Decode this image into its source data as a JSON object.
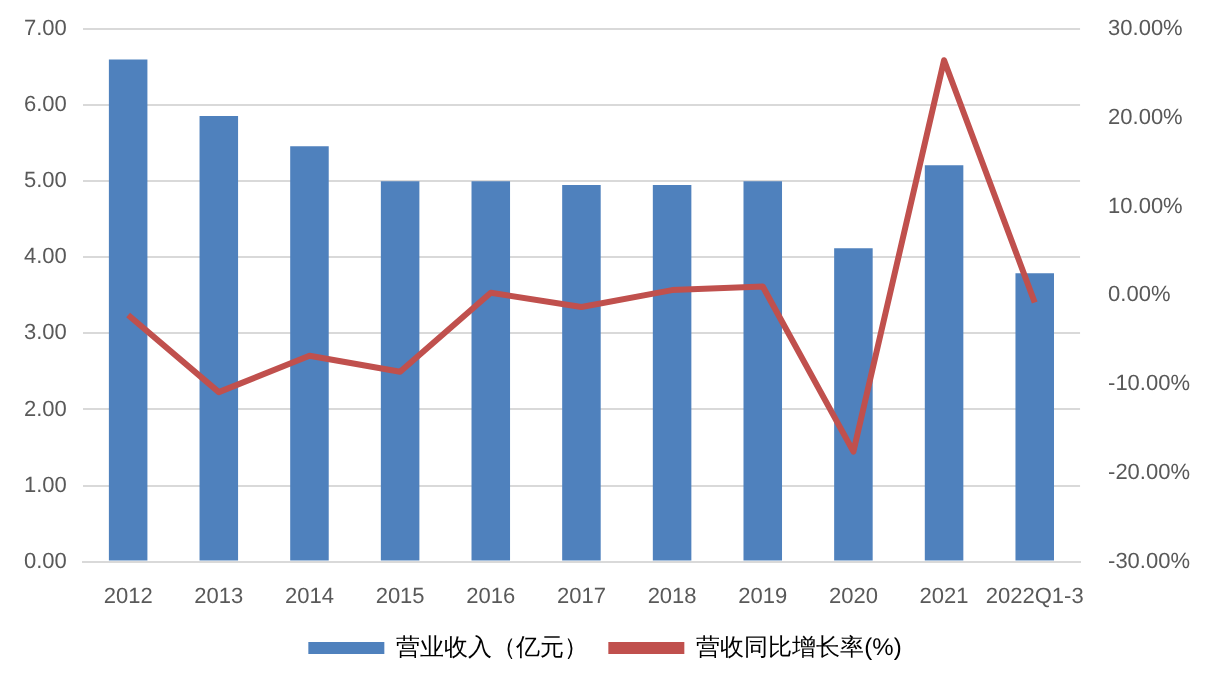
{
  "chart_data": {
    "type": "bar",
    "categories": [
      "2012",
      "2013",
      "2014",
      "2015",
      "2016",
      "2017",
      "2018",
      "2019",
      "2020",
      "2021",
      "2022Q1-3"
    ],
    "series": [
      {
        "name": "营业收入（亿元）",
        "color": "#4f81bd",
        "values": [
          6.6,
          5.86,
          5.46,
          5.0,
          5.0,
          4.95,
          4.95,
          5.0,
          4.12,
          5.21,
          3.79
        ]
      },
      {
        "name": "营收同比增长率(%)",
        "type": "line",
        "axis": "y2",
        "color": "#c0504d",
        "values": [
          -2.2,
          -10.9,
          -6.8,
          -8.6,
          0.3,
          -1.3,
          0.6,
          1.0,
          -17.6,
          26.5,
          -0.8
        ]
      }
    ],
    "ylim": [
      0,
      7
    ],
    "yticks": [
      {
        "value": 0,
        "label": "0.00"
      },
      {
        "value": 1,
        "label": "1.00"
      },
      {
        "value": 2,
        "label": "2.00"
      },
      {
        "value": 3,
        "label": "3.00"
      },
      {
        "value": 4,
        "label": "4.00"
      },
      {
        "value": 5,
        "label": "5.00"
      },
      {
        "value": 6,
        "label": "6.00"
      },
      {
        "value": 7,
        "label": "7.00"
      }
    ],
    "y2lim": [
      -30,
      30
    ],
    "y2ticks": [
      {
        "value": -30,
        "label": "-30.00%"
      },
      {
        "value": -20,
        "label": "-20.00%"
      },
      {
        "value": -10,
        "label": "-10.00%"
      },
      {
        "value": 0,
        "label": "0.00%"
      },
      {
        "value": 10,
        "label": "10.00%"
      },
      {
        "value": 20,
        "label": "20.00%"
      },
      {
        "value": 30,
        "label": "30.00%"
      }
    ],
    "grid": "y",
    "legend": "bottom",
    "marker": "none",
    "line_style": "solid"
  }
}
